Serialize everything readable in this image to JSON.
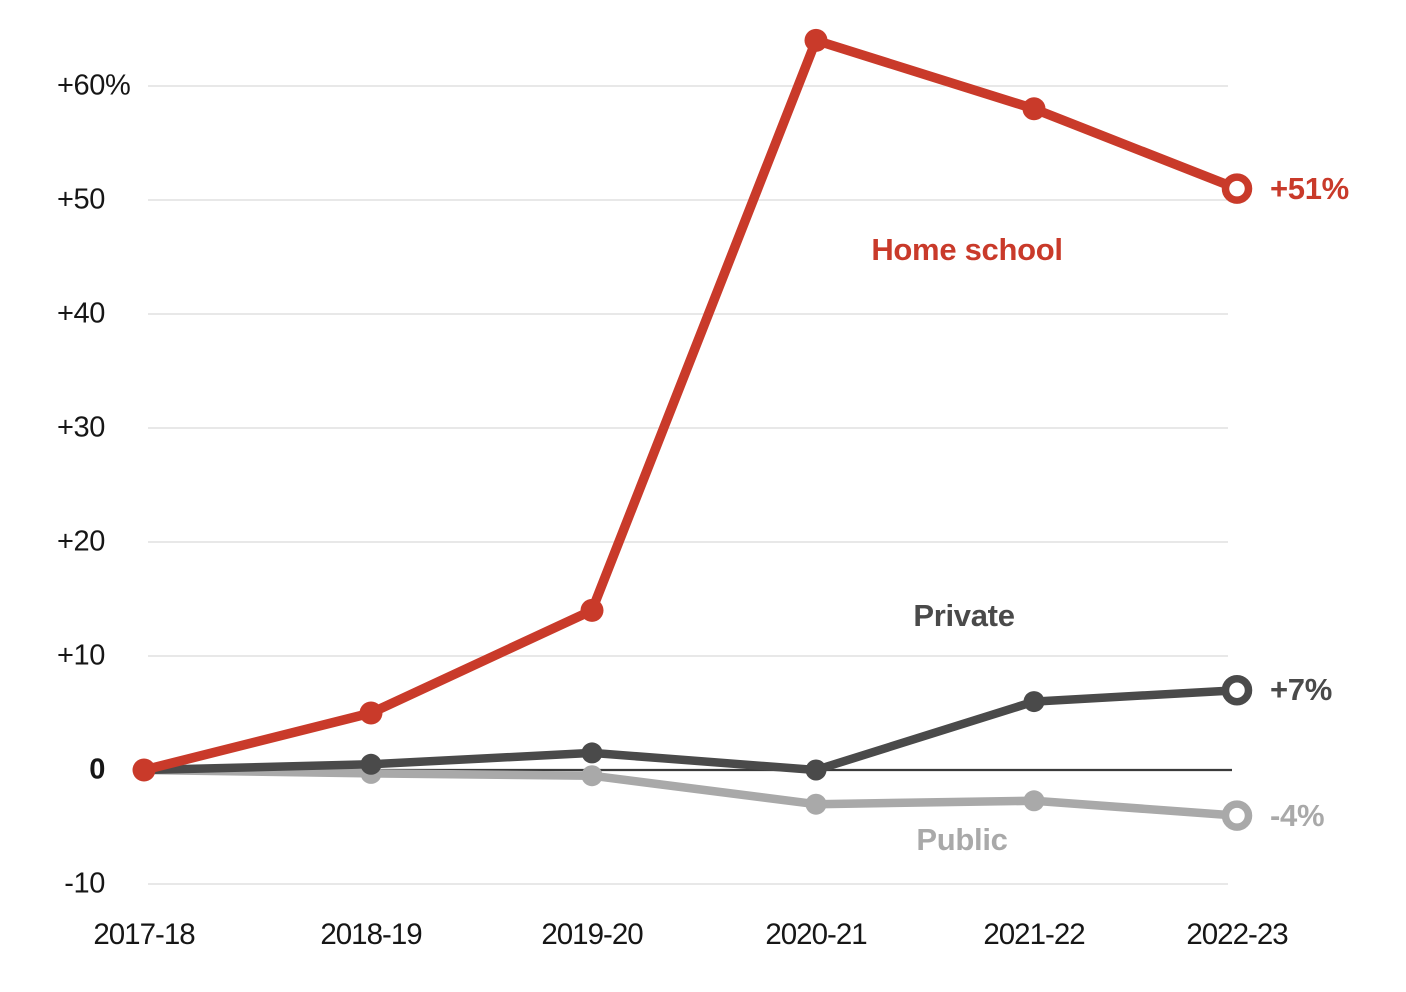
{
  "chart_data": {
    "type": "line",
    "categories": [
      "2017-18",
      "2018-19",
      "2019-20",
      "2020-21",
      "2021-22",
      "2022-23"
    ],
    "series": [
      {
        "name": "Home school",
        "values": [
          0,
          5,
          14,
          64,
          58,
          51
        ],
        "end_label": "+51%",
        "color": "#c93a2a",
        "marker_last": "open-circle"
      },
      {
        "name": "Private",
        "values": [
          0,
          0.5,
          1.5,
          0,
          6,
          7
        ],
        "end_label": "+7%",
        "color": "#4a4a4a",
        "marker_last": "open-circle"
      },
      {
        "name": "Public",
        "values": [
          0,
          -0.3,
          -0.5,
          -3,
          -2.7,
          -4
        ],
        "end_label": "-4%",
        "color": "#a9a9a9",
        "marker_last": "open-circle"
      }
    ],
    "y_ticks": [
      {
        "value": 60,
        "label": "+60",
        "suffix": "%"
      },
      {
        "value": 50,
        "label": "+50"
      },
      {
        "value": 40,
        "label": "+40"
      },
      {
        "value": 30,
        "label": "+30"
      },
      {
        "value": 20,
        "label": "+20"
      },
      {
        "value": 10,
        "label": "+10"
      },
      {
        "value": 0,
        "label": "0",
        "bold": true
      },
      {
        "value": -10,
        "label": "-10"
      }
    ],
    "ylim": [
      -10,
      65
    ],
    "xlabel": "",
    "ylabel": "",
    "grid": true,
    "legend_position": "inline-labels",
    "colors": {
      "gridline": "#e1e1e1",
      "zero_line": "#3b3b3b",
      "tick_text": "#161616"
    }
  }
}
